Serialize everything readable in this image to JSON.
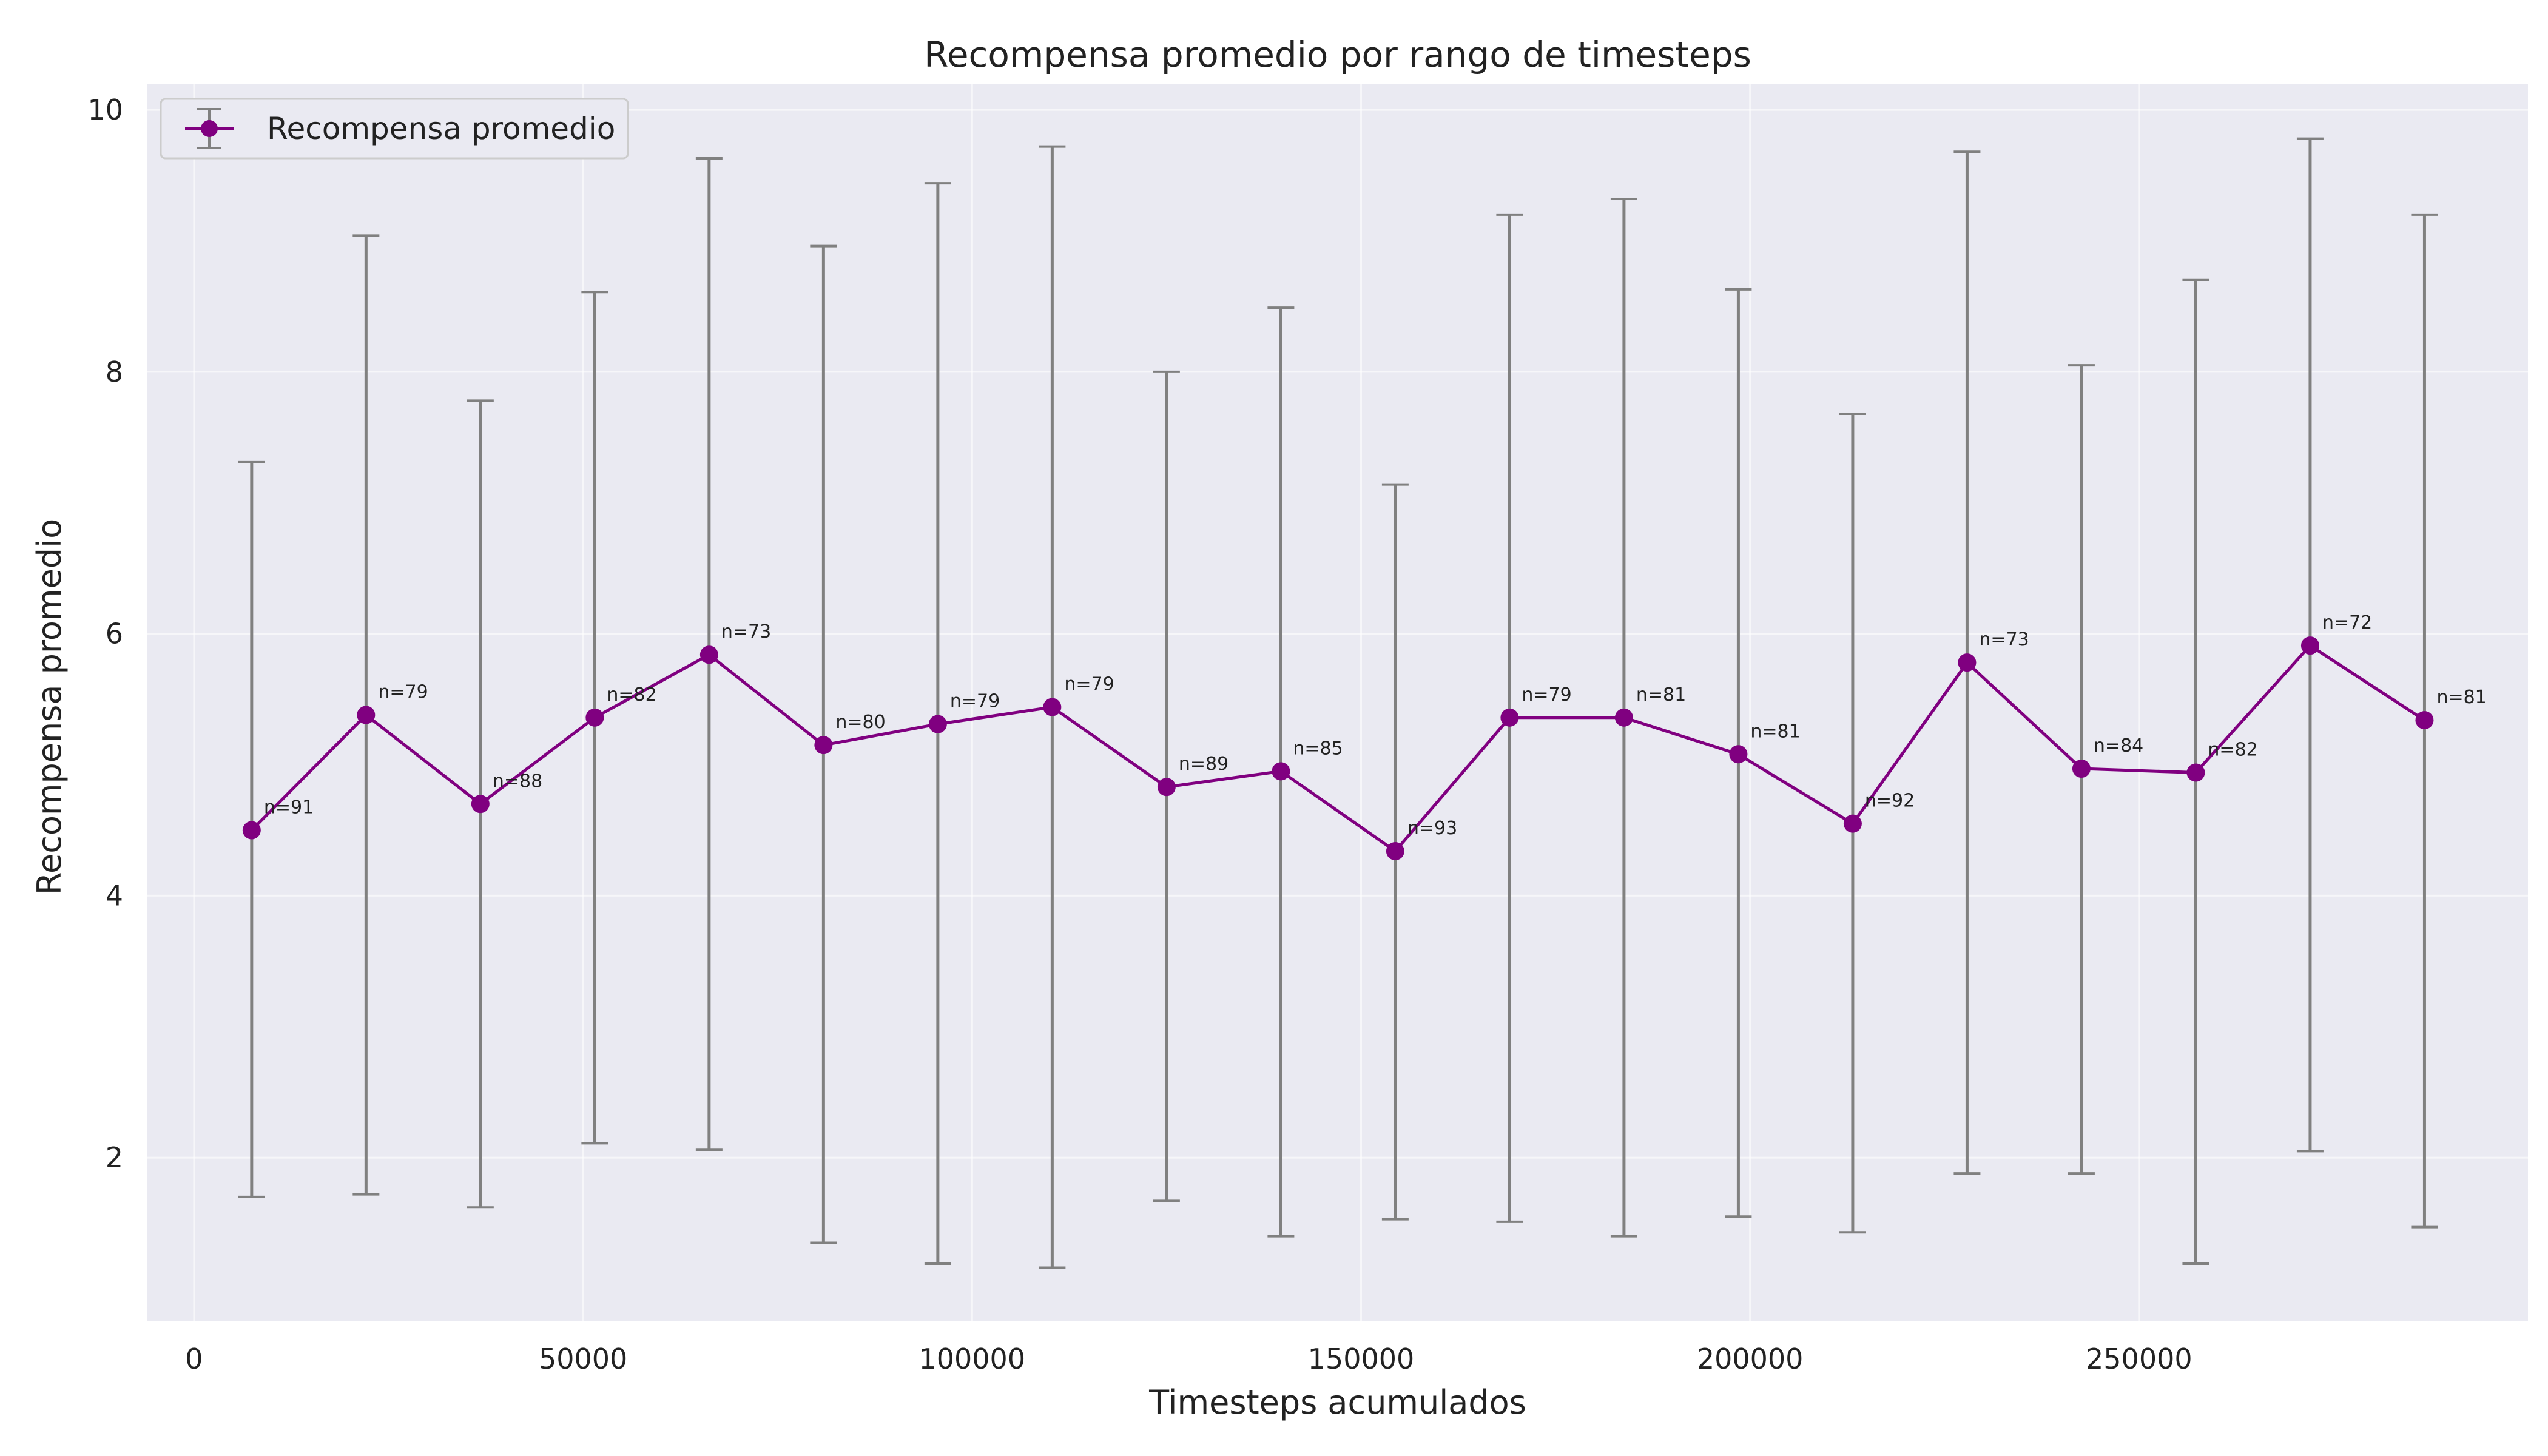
{
  "chart_data": {
    "type": "line",
    "title": "Recompensa promedio por rango de timesteps",
    "xlabel": "Timesteps acumulados",
    "ylabel": "Recompensa promedio",
    "xlim": [
      -6000,
      300000
    ],
    "ylim": [
      0.75,
      10.2
    ],
    "xticks": [
      0,
      50000,
      100000,
      150000,
      200000,
      250000
    ],
    "yticks": [
      2,
      4,
      6,
      8,
      10
    ],
    "grid": true,
    "legend_position": "top-left",
    "line_color": "#800080",
    "errorbar_color": "#808080",
    "background": "#eaeaf2",
    "series": [
      {
        "name": "Recompensa promedio",
        "x": [
          7400,
          22100,
          36800,
          51500,
          66200,
          80900,
          95600,
          110300,
          125000,
          139700,
          154400,
          169100,
          183800,
          198500,
          213200,
          227900,
          242600,
          257300,
          272000,
          286700
        ],
        "y": [
          4.5,
          5.38,
          4.7,
          5.36,
          5.84,
          5.15,
          5.31,
          5.44,
          4.83,
          4.95,
          4.34,
          5.36,
          5.36,
          5.08,
          4.55,
          5.78,
          4.97,
          4.94,
          5.91,
          5.34
        ],
        "yerr_low": [
          1.7,
          1.72,
          1.62,
          2.11,
          2.06,
          1.35,
          1.19,
          1.16,
          1.67,
          1.4,
          1.53,
          1.51,
          1.4,
          1.55,
          1.43,
          1.88,
          1.88,
          1.19,
          2.05,
          1.47
        ],
        "yerr_high": [
          7.31,
          9.04,
          7.78,
          8.61,
          9.63,
          8.96,
          9.44,
          9.72,
          8.0,
          8.49,
          7.14,
          9.2,
          9.32,
          8.63,
          7.68,
          9.68,
          8.05,
          8.7,
          9.78,
          9.2
        ],
        "n_labels": [
          "n=91",
          "n=79",
          "n=88",
          "n=82",
          "n=73",
          "n=80",
          "n=79",
          "n=79",
          "n=89",
          "n=85",
          "n=93",
          "n=79",
          "n=81",
          "n=81",
          "n=92",
          "n=73",
          "n=84",
          "n=82",
          "n=72",
          "n=81"
        ]
      }
    ]
  }
}
